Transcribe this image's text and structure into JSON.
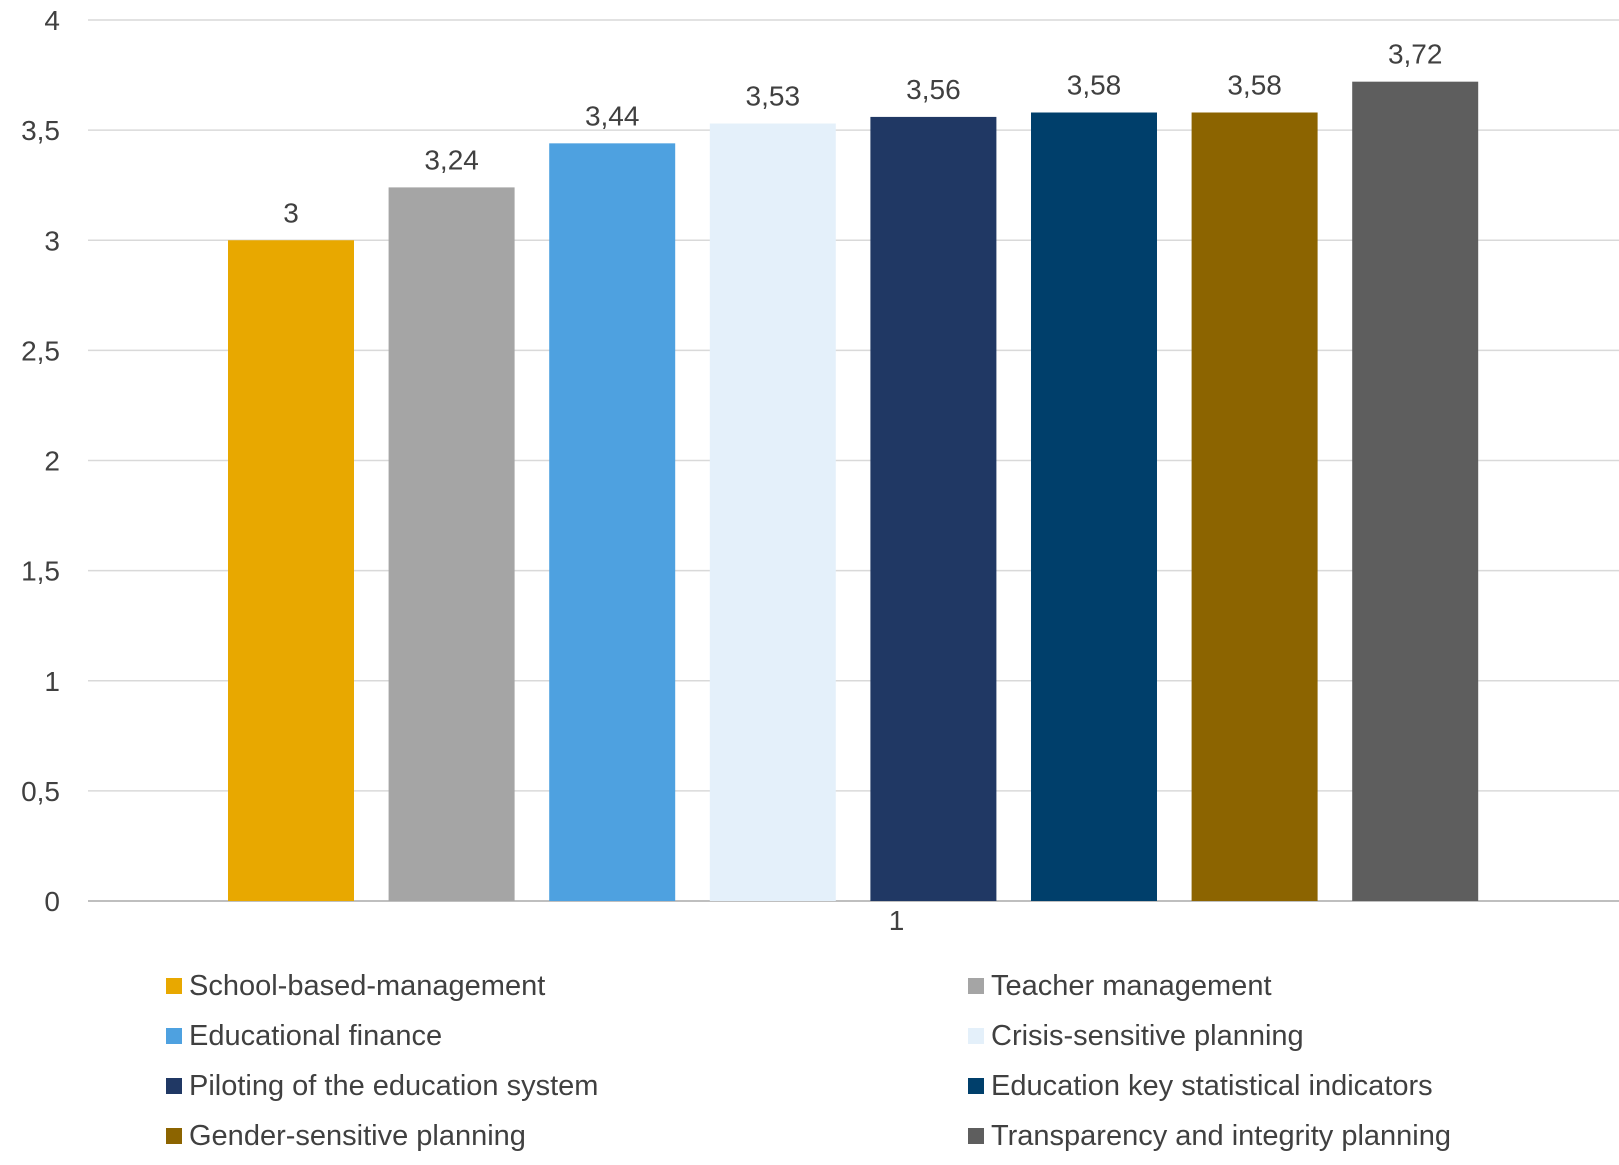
{
  "chart_data": {
    "type": "bar",
    "title": "",
    "xlabel": "",
    "ylabel": "",
    "categories": [
      "1"
    ],
    "ylim": [
      0,
      4
    ],
    "yticks": [
      "0",
      "0,5",
      "1",
      "1,5",
      "2",
      "2,5",
      "3",
      "3,5",
      "4"
    ],
    "grid": true,
    "legend_position": "bottom",
    "series": [
      {
        "name": "School-based-management",
        "values": [
          3
        ],
        "label": "3",
        "color": "#E8A800"
      },
      {
        "name": "Teacher management",
        "values": [
          3.24
        ],
        "label": "3,24",
        "color": "#A5A5A5"
      },
      {
        "name": "Educational finance",
        "values": [
          3.44
        ],
        "label": "3,44",
        "color": "#4EA1E0"
      },
      {
        "name": "Crisis-sensitive planning",
        "values": [
          3.53
        ],
        "label": "3,53",
        "color": "#E4F0FA"
      },
      {
        "name": "Piloting of the education system",
        "values": [
          3.56
        ],
        "label": "3,56",
        "color": "#203864"
      },
      {
        "name": "Education key statistical indicators",
        "values": [
          3.58
        ],
        "label": "3,58",
        "color": "#003F6B"
      },
      {
        "name": "Gender-sensitive planning",
        "values": [
          3.58
        ],
        "label": "3,58",
        "color": "#8C6400"
      },
      {
        "name": "Transparency and integrity planning",
        "values": [
          3.72
        ],
        "label": "3,72",
        "color": "#5E5E5E"
      }
    ]
  }
}
